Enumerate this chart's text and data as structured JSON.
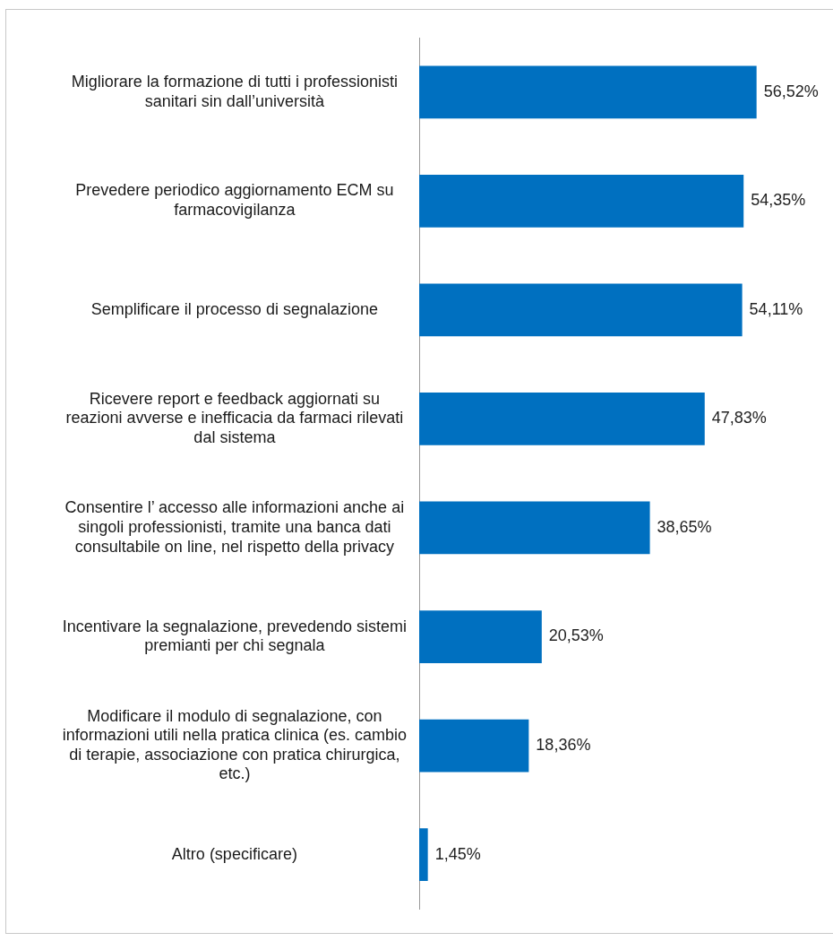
{
  "chart_data": {
    "type": "bar",
    "orientation": "horizontal",
    "categories": [
      "Migliorare la formazione di tutti i professionisti sanitari sin dall’università",
      "Prevedere periodico aggiornamento ECM su farmacovigilanza",
      "Semplificare il processo di segnalazione",
      "Ricevere report e feedback aggiornati su reazioni avverse e inefficacia da farmaci rilevati dal sistema",
      "Consentire l’ accesso alle informazioni anche ai singoli professionisti, tramite una banca dati consultabile on line, nel rispetto della privacy",
      "Incentivare la segnalazione, prevedendo sistemi premianti per chi segnala",
      "Modificare il modulo di segnalazione, con informazioni utili nella pratica clinica (es. cambio di terapie, associazione con pratica chirurgica, etc.)",
      "Altro (specificare)"
    ],
    "values": [
      56.52,
      54.35,
      54.11,
      47.83,
      38.65,
      20.53,
      18.36,
      1.45
    ],
    "value_labels": [
      "56,52%",
      "54,35%",
      "54,11%",
      "47,83%",
      "38,65%",
      "20,53%",
      "18,36%",
      "1,45%"
    ],
    "color": "#0070c0",
    "tick_labels": "y"
  }
}
